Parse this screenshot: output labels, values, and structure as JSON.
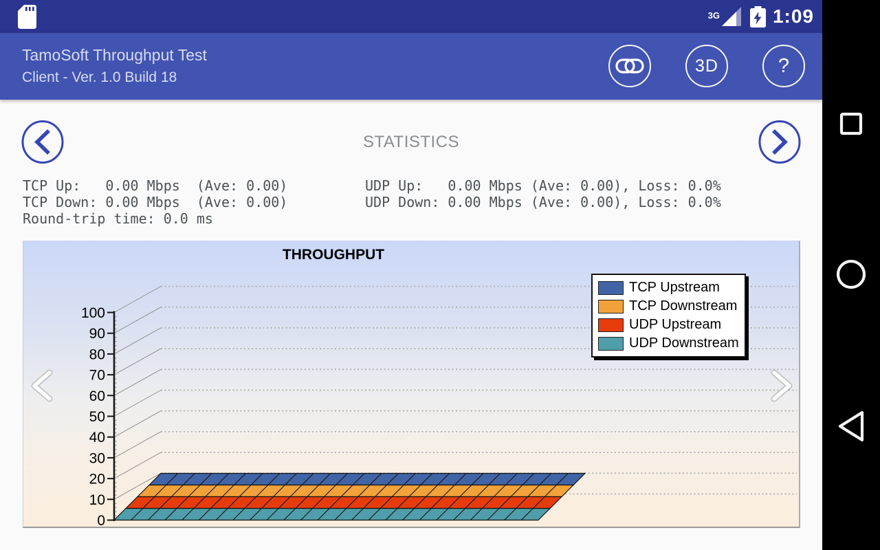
{
  "status_bar": {
    "time": "1:09",
    "network": "3G",
    "icons": [
      "sd-card-icon",
      "signal-triangle-icon",
      "battery-charging-icon"
    ]
  },
  "app_bar": {
    "title": "TamoSoft Throughput Test",
    "subtitle": "Client - Ver. 1.0 Build 18",
    "actions": [
      {
        "name": "connect",
        "icon": "link-icon",
        "label": ""
      },
      {
        "name": "3d-view",
        "label": "3D"
      },
      {
        "name": "help",
        "label": "?"
      }
    ]
  },
  "page": {
    "title": "STATISTICS"
  },
  "stats": {
    "left": [
      "TCP Up:   0.00 Mbps  (Ave: 0.00)",
      "TCP Down: 0.00 Mbps  (Ave: 0.00)",
      "Round-trip time: 0.0 ms"
    ],
    "right": [
      "UDP Up:   0.00 Mbps (Ave: 0.00), Loss: 0.0%",
      "UDP Down: 0.00 Mbps (Ave: 0.00), Loss: 0.0%"
    ]
  },
  "chart_data": {
    "type": "area",
    "style": "3d-ribbon",
    "title": "THROUGHPUT",
    "xlabel": "",
    "ylabel": "",
    "ylim": [
      0,
      100
    ],
    "ytick_step": 10,
    "grid": true,
    "legend_position": "top-right",
    "x_axis": {
      "labels_visible": false
    },
    "series": [
      {
        "name": "TCP Upstream",
        "color": "#4164A6",
        "values": [
          0,
          0,
          0,
          0,
          0,
          0,
          0,
          0,
          0,
          0,
          0,
          0,
          0,
          0,
          0,
          0,
          0,
          0,
          0,
          0,
          0,
          0,
          0,
          0,
          0,
          0
        ]
      },
      {
        "name": "TCP Downstream",
        "color": "#F1A23A",
        "values": [
          0,
          0,
          0,
          0,
          0,
          0,
          0,
          0,
          0,
          0,
          0,
          0,
          0,
          0,
          0,
          0,
          0,
          0,
          0,
          0,
          0,
          0,
          0,
          0,
          0,
          0
        ]
      },
      {
        "name": "UDP Upstream",
        "color": "#E63C0C",
        "values": [
          0,
          0,
          0,
          0,
          0,
          0,
          0,
          0,
          0,
          0,
          0,
          0,
          0,
          0,
          0,
          0,
          0,
          0,
          0,
          0,
          0,
          0,
          0,
          0,
          0,
          0
        ]
      },
      {
        "name": "UDP Downstream",
        "color": "#4F9EA9",
        "values": [
          0,
          0,
          0,
          0,
          0,
          0,
          0,
          0,
          0,
          0,
          0,
          0,
          0,
          0,
          0,
          0,
          0,
          0,
          0,
          0,
          0,
          0,
          0,
          0,
          0,
          0
        ]
      }
    ]
  },
  "nav_bar": {
    "buttons": [
      {
        "name": "recents",
        "icon": "square-icon"
      },
      {
        "name": "home",
        "icon": "circle-icon"
      },
      {
        "name": "back",
        "icon": "triangle-left-icon"
      }
    ]
  },
  "colors": {
    "status_bar_bg": "#2A3590",
    "app_bar_bg": "#4254B1",
    "accent_blue": "#3546B4",
    "content_bg": "#FAFAFA",
    "nav_bar_bg": "#000000"
  }
}
